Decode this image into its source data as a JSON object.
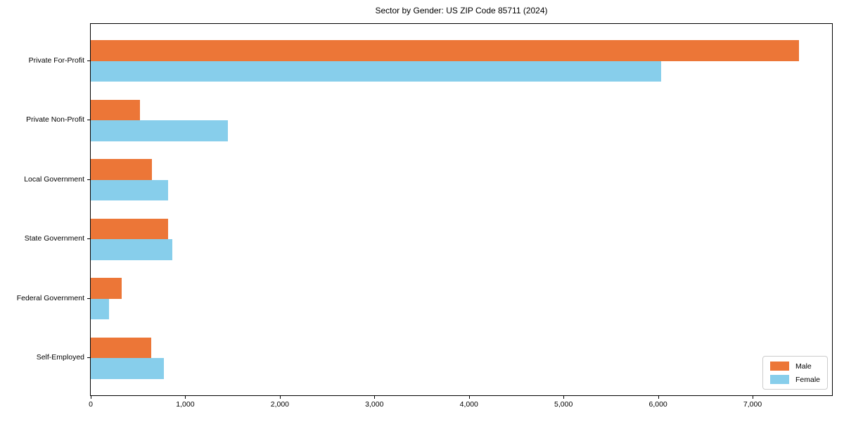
{
  "title": "Sector by Gender: US ZIP Code 85711 (2024)",
  "chart_data": {
    "type": "bar",
    "orientation": "horizontal",
    "title": "Sector by Gender: US ZIP Code 85711 (2024)",
    "categories": [
      "Private For-Profit",
      "Private Non-Profit",
      "Local Government",
      "State Government",
      "Federal Government",
      "Self-Employed"
    ],
    "series": [
      {
        "name": "Male",
        "color": "#ec7637",
        "values": [
          7490,
          520,
          650,
          815,
          330,
          640
        ]
      },
      {
        "name": "Female",
        "color": "#87ceeb",
        "values": [
          6030,
          1450,
          820,
          860,
          195,
          770
        ]
      }
    ],
    "xlabel": "",
    "ylabel": "",
    "xlim": [
      0,
      7840
    ],
    "xticks": [
      0,
      1000,
      2000,
      3000,
      4000,
      5000,
      6000,
      7000
    ],
    "xtick_labels": [
      "0",
      "1,000",
      "2,000",
      "3,000",
      "4,000",
      "5,000",
      "6,000",
      "7,000"
    ],
    "grid": false,
    "bar_height_fraction": 0.35,
    "legend": {
      "position": "lower-right",
      "items": [
        {
          "label": "Male",
          "color": "#ec7637"
        },
        {
          "label": "Female",
          "color": "#87ceeb"
        }
      ]
    }
  }
}
